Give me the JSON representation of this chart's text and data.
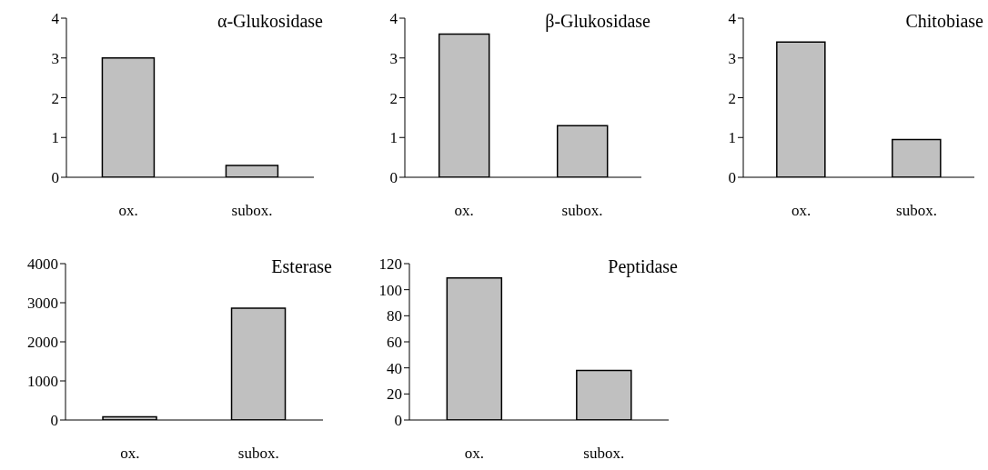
{
  "chart_data": [
    {
      "type": "bar",
      "title": "α-Glukosidase",
      "categories": [
        "ox.",
        "subox."
      ],
      "values": [
        3.0,
        0.3
      ],
      "color": "#c0c0c0",
      "ylim": [
        0,
        4
      ],
      "yticks": [
        0,
        1,
        2,
        3,
        4
      ]
    },
    {
      "type": "bar",
      "title": "β-Glukosidase",
      "categories": [
        "ox.",
        "subox."
      ],
      "values": [
        3.6,
        1.3
      ],
      "color": "#c0c0c0",
      "ylim": [
        0,
        4
      ],
      "yticks": [
        0,
        1,
        2,
        3,
        4
      ]
    },
    {
      "type": "bar",
      "title": "Chitobiase",
      "categories": [
        "ox.",
        "subox."
      ],
      "values": [
        3.4,
        0.95
      ],
      "color": "#c0c0c0",
      "ylim": [
        0,
        4
      ],
      "yticks": [
        0,
        1,
        2,
        3,
        4
      ]
    },
    {
      "type": "bar",
      "title": "Esterase",
      "categories": [
        "ox.",
        "subox."
      ],
      "values": [
        80,
        2860
      ],
      "color": "#c0c0c0",
      "ylim": [
        0,
        4000
      ],
      "yticks": [
        0,
        1000,
        2000,
        3000,
        4000
      ]
    },
    {
      "type": "bar",
      "title": "Peptidase",
      "categories": [
        "ox.",
        "subox."
      ],
      "values": [
        109,
        38
      ],
      "color": "#c0c0c0",
      "ylim": [
        0,
        120
      ],
      "yticks": [
        0,
        20,
        40,
        60,
        80,
        100,
        120
      ]
    }
  ]
}
